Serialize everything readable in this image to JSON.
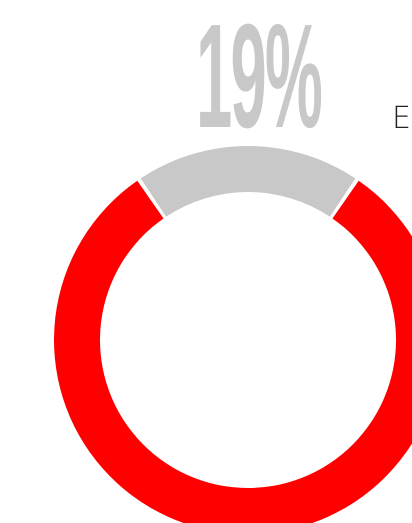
{
  "chart_data": {
    "type": "pie",
    "style": "donut",
    "highlight_label": "19%",
    "label_partial": "E",
    "slices": [
      {
        "value": 19,
        "color": "#c8c8c8"
      },
      {
        "value": 81,
        "color": "#ff0000"
      }
    ]
  },
  "colors": {
    "highlight": "#c8c8c8",
    "remainder": "#ff0000",
    "text": "#222222",
    "background": "#ffffff"
  }
}
